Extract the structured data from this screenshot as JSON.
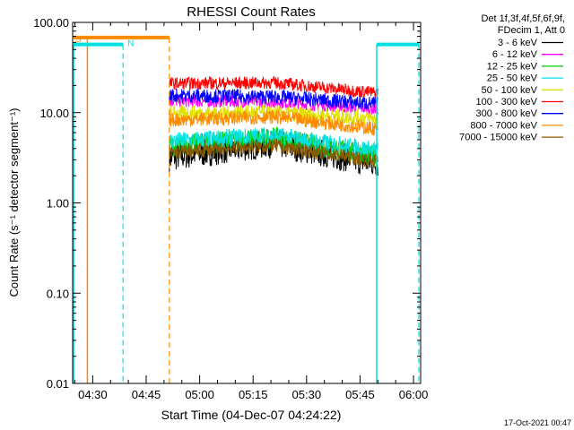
{
  "chart_data": {
    "type": "line",
    "title": "RHESSI Count Rates",
    "xlabel": "Start Time (04-Dec-07 04:24:22)",
    "ylabel": "Count Rate (s⁻¹ detector segment⁻¹)",
    "yscale": "log",
    "ylim": [
      0.01,
      100
    ],
    "yticks": [
      "0.01",
      "0.10",
      "1.00",
      "10.00",
      "100.00"
    ],
    "xlim": [
      "04:24:22",
      "06:02:00"
    ],
    "xticks": [
      "04:30",
      "04:45",
      "05:00",
      "05:15",
      "05:30",
      "05:45",
      "06:00"
    ],
    "grid": false,
    "legend": {
      "placement": "right",
      "header": [
        "Det 1f,3f,4f,5f,6f,9f,",
        "FDecim 1, Att 0"
      ]
    },
    "data_interval": [
      "04:51:30",
      "05:50:00"
    ],
    "series": [
      {
        "name": "3 - 6 keV",
        "color": "#000000",
        "start": 3.2,
        "mid": 4.6,
        "end": 2.7,
        "noise": 0.16
      },
      {
        "name": "6 - 12 keV",
        "color": "#ff00ff",
        "start": 13.5,
        "mid": 13.2,
        "end": 11.0,
        "noise": 0.07
      },
      {
        "name": "12 - 25 keV",
        "color": "#00d000",
        "start": 4.2,
        "mid": 5.3,
        "end": 3.2,
        "noise": 0.12
      },
      {
        "name": "25 - 50 keV",
        "color": "#00e0e0",
        "start": 4.8,
        "mid": 5.6,
        "end": 3.8,
        "noise": 0.1
      },
      {
        "name": "50 - 100 keV",
        "color": "#e0e000",
        "start": 9.8,
        "mid": 10.0,
        "end": 8.6,
        "noise": 0.09
      },
      {
        "name": "100 - 300 keV",
        "color": "#ff0000",
        "start": 21.0,
        "mid": 21.5,
        "end": 16.5,
        "noise": 0.07
      },
      {
        "name": "300 - 800 keV",
        "color": "#0000ff",
        "start": 15.5,
        "mid": 15.0,
        "end": 12.5,
        "noise": 0.08
      },
      {
        "name": "800 - 7000 keV",
        "color": "#ff8c00",
        "start": 8.3,
        "mid": 9.0,
        "end": 6.6,
        "noise": 0.08
      },
      {
        "name": "7000 - 15000 keV",
        "color": "#8b5a00",
        "start": 3.6,
        "mid": 4.3,
        "end": 2.9,
        "noise": 0.08
      }
    ],
    "annotations": [
      {
        "label": "S",
        "color": "#ff8c00",
        "from": "04:24:22",
        "to": "04:51:30",
        "level": 68
      },
      {
        "label": "N",
        "color": "#00e0e0",
        "from": "04:24:22",
        "to": "04:38:30",
        "level": 57
      },
      {
        "label": "",
        "color": "#00e0e0",
        "from": "05:49:40",
        "to": "06:01:30",
        "level": 57
      }
    ]
  },
  "footer": {
    "date": "17-Oct-2021 00:47"
  }
}
